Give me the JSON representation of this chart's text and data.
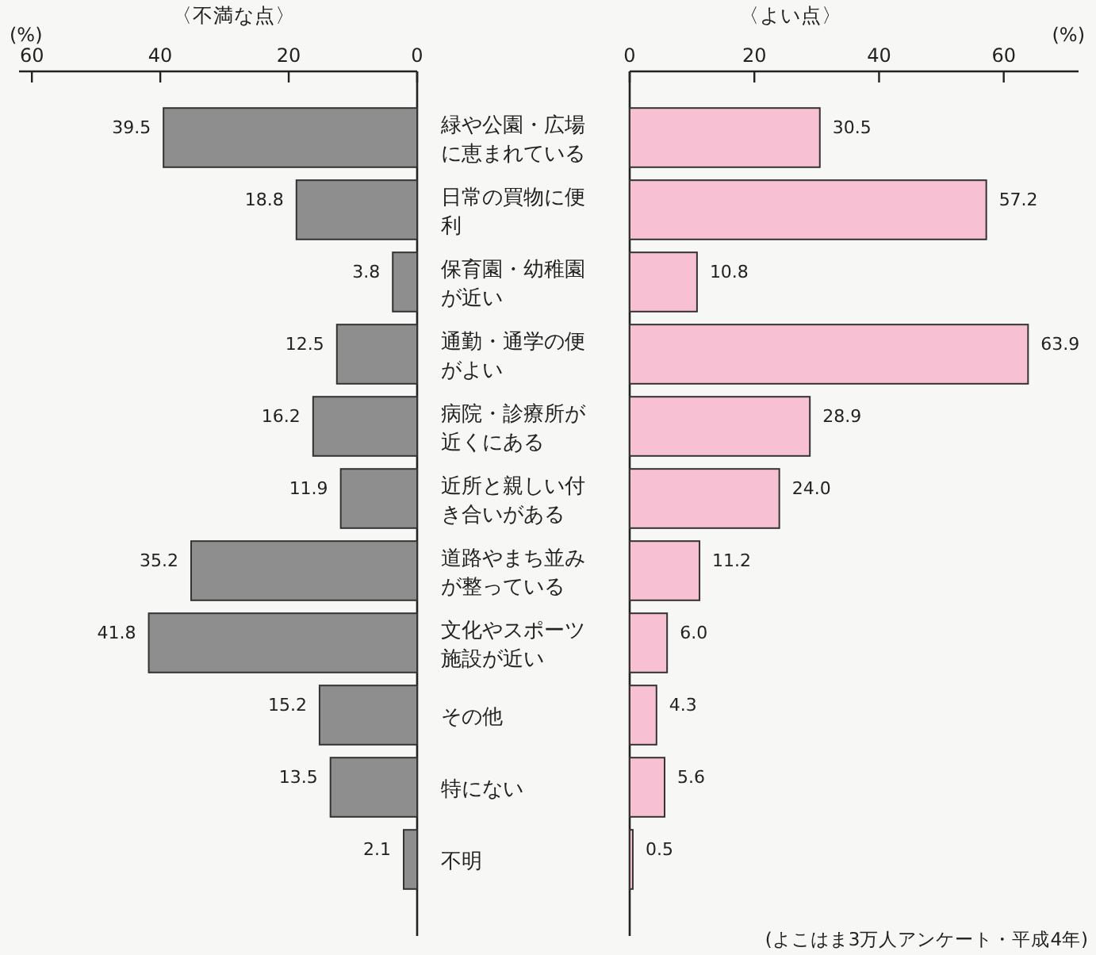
{
  "chart_data": [
    {
      "type": "bar",
      "orientation": "horizontal",
      "title": "〈不満な点〉",
      "xlabel": "(%)",
      "categories": [
        "緑や公園・広場に恵まれている",
        "日常の買物に便利",
        "保育園・幼稚園が近い",
        "通勤・通学の便がよい",
        "病院・診療所が近くにある",
        "近所と親しい付き合いがある",
        "道路やまち並みが整っている",
        "文化やスポーツ施設が近い",
        "その他",
        "特にない",
        "不明"
      ],
      "values": [
        39.5,
        18.8,
        3.8,
        12.5,
        16.2,
        11.9,
        35.2,
        41.8,
        15.2,
        13.5,
        2.1
      ],
      "color": "#8e8e8e",
      "xlim": [
        62,
        0
      ],
      "xticks": [
        60,
        40,
        20,
        0
      ],
      "data_labels": true
    },
    {
      "type": "bar",
      "orientation": "horizontal",
      "title": "〈よい点〉",
      "xlabel": "(%)",
      "categories": [
        "緑や公園・広場に恵まれている",
        "日常の買物に便利",
        "保育園・幼稚園が近い",
        "通勤・通学の便がよい",
        "病院・診療所が近くにある",
        "近所と親しい付き合いがある",
        "道路やまち並みが整っている",
        "文化やスポーツ施設が近い",
        "その他",
        "特にない",
        "不明"
      ],
      "values": [
        30.5,
        57.2,
        10.8,
        63.9,
        28.9,
        24.0,
        11.2,
        6.0,
        4.3,
        5.6,
        0.5
      ],
      "value_labels": [
        "30.5",
        "57.2",
        "10.8",
        "63.9",
        "28.9",
        "24.0",
        "11.2",
        "6.0",
        "4.3",
        "5.6",
        "0.5"
      ],
      "color": "#f7c1d3",
      "xlim": [
        0,
        72
      ],
      "xticks": [
        0,
        20,
        40,
        60
      ],
      "tick_labels": "x",
      "annotations": [
        "(よこはま3万人アンケート・平成4年)"
      ]
    }
  ]
}
